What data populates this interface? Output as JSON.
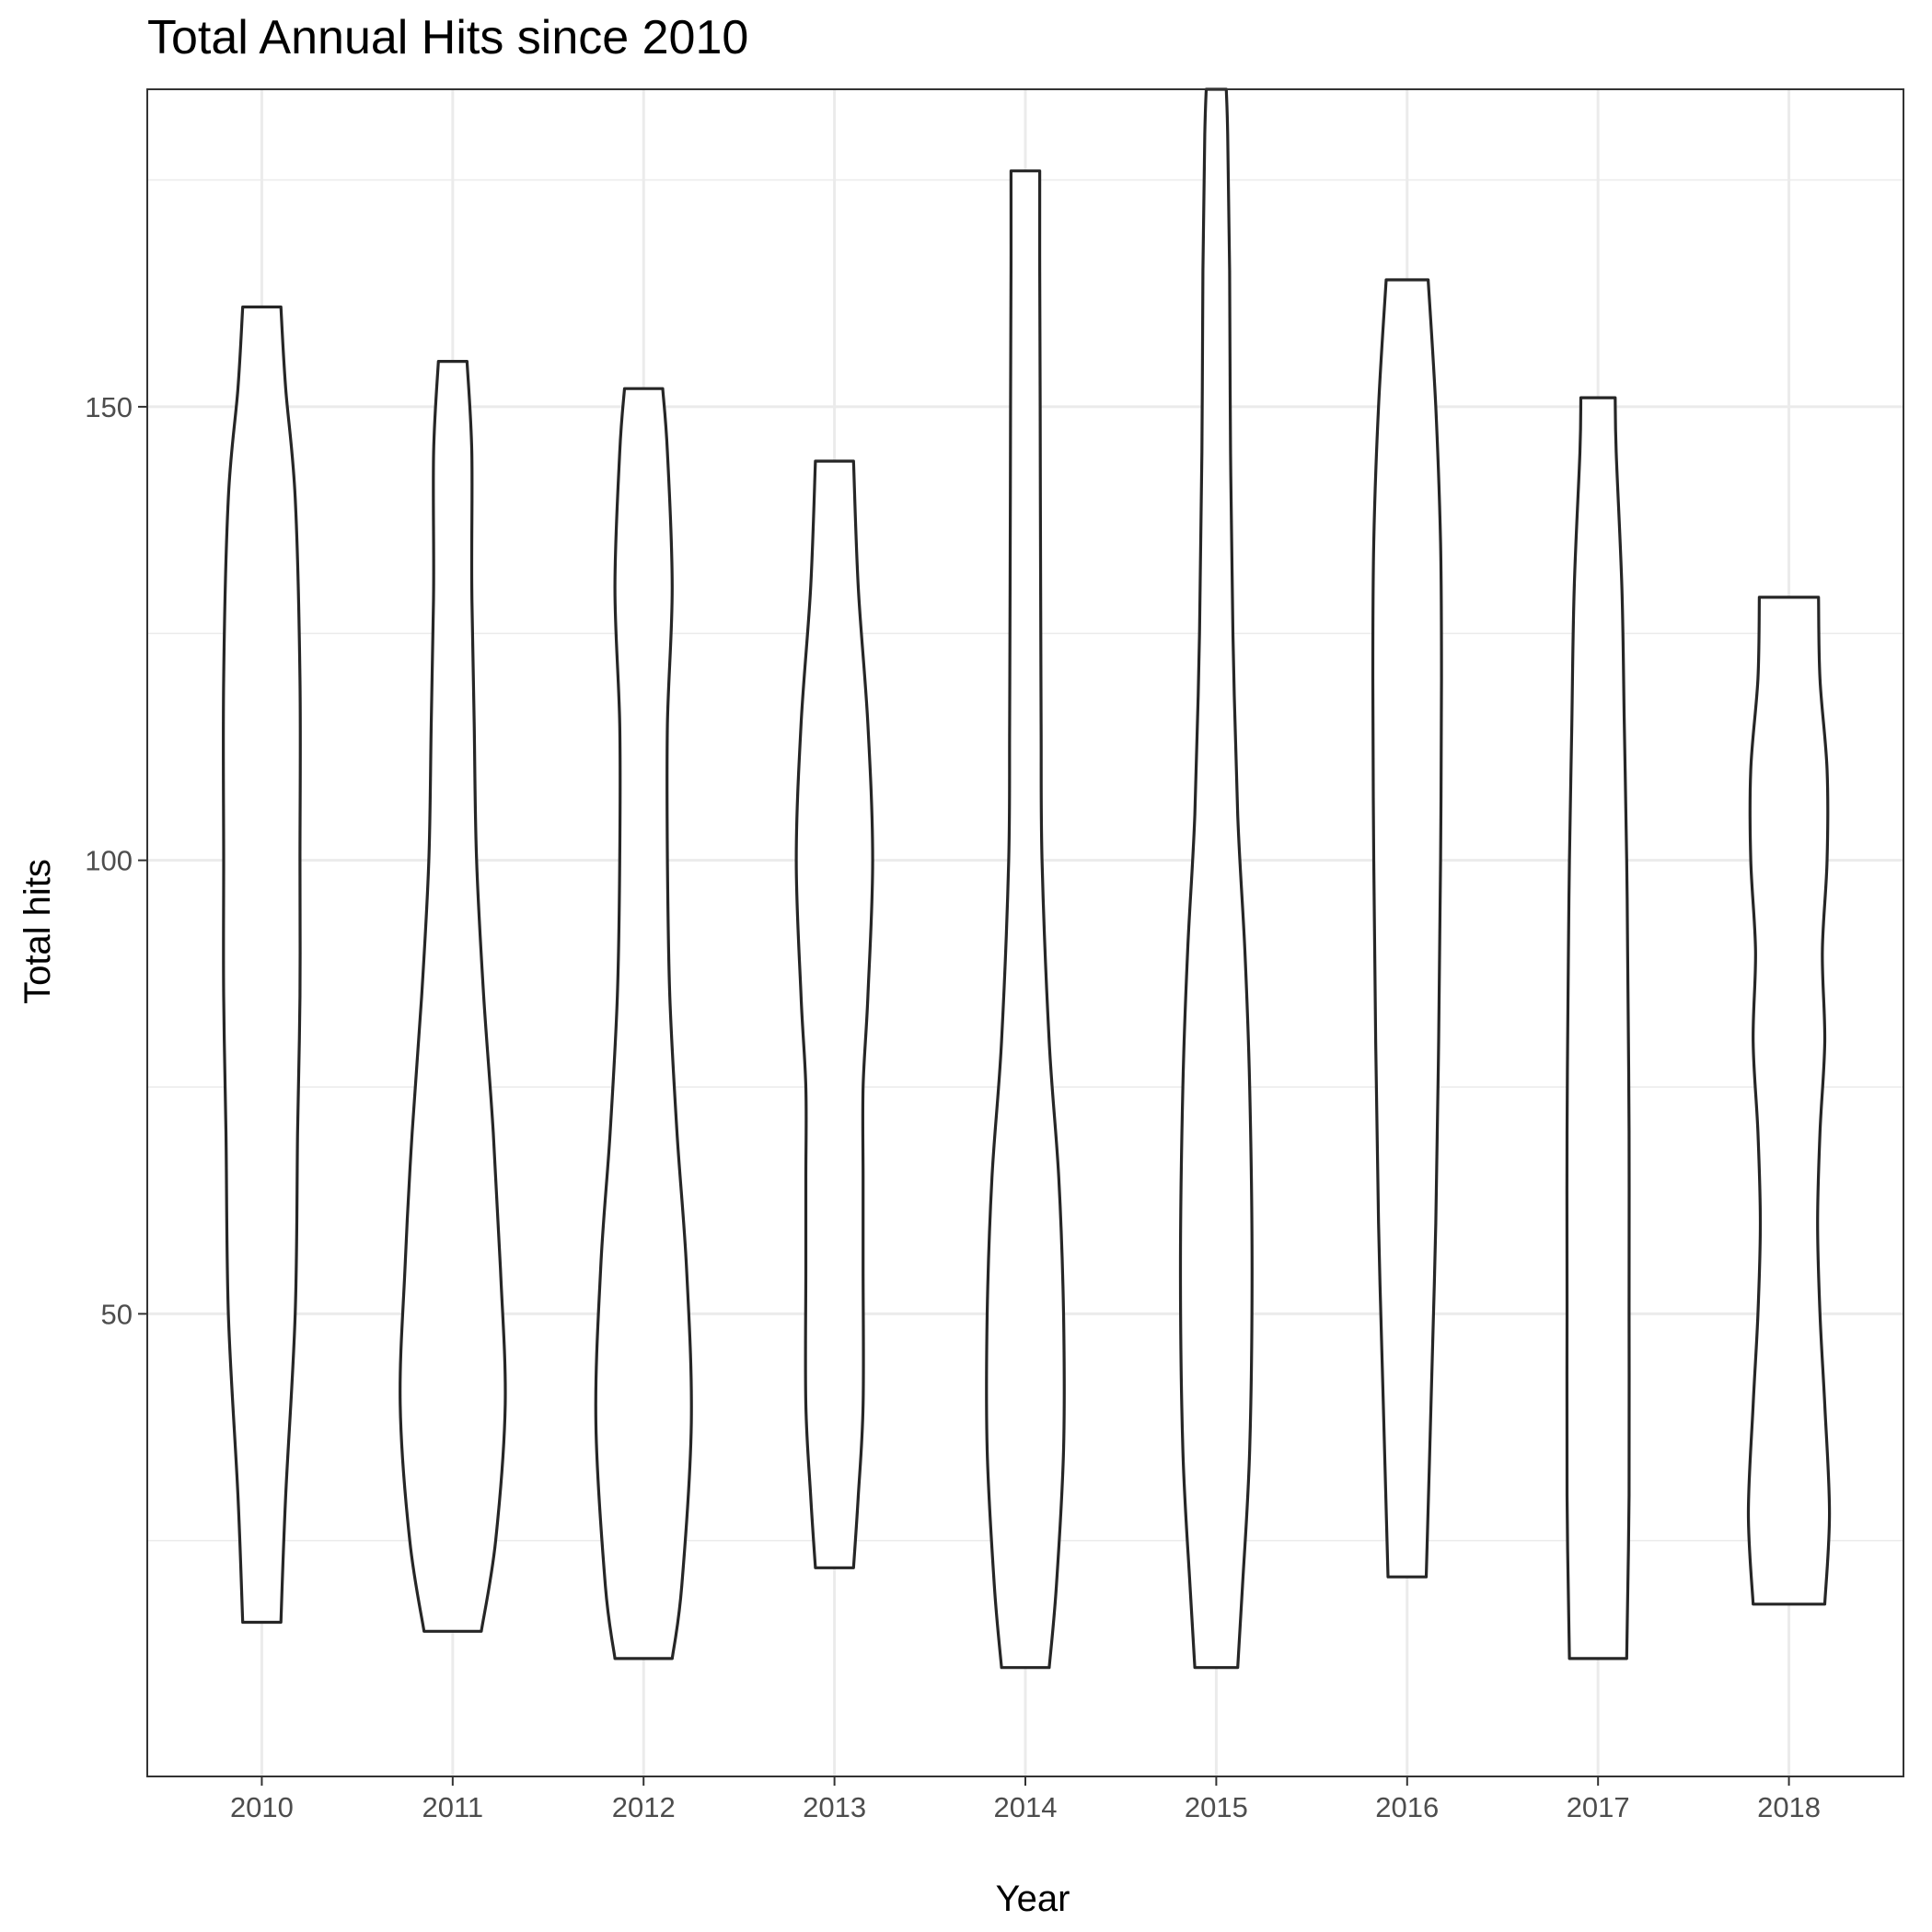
{
  "chart_data": {
    "type": "violin",
    "title": "Total Annual Hits since 2010",
    "xlabel": "Year",
    "ylabel": "Total hits",
    "ylim": [
      -1,
      185
    ],
    "yticks": [
      50,
      100,
      150
    ],
    "grid": true,
    "categories": [
      "2010",
      "2011",
      "2012",
      "2013",
      "2014",
      "2015",
      "2016",
      "2017",
      "2018"
    ],
    "violins": [
      {
        "year": "2010",
        "min": 16,
        "max": 161,
        "profile": [
          [
            16,
            0.04
          ],
          [
            30,
            0.05
          ],
          [
            50,
            0.07
          ],
          [
            70,
            0.075
          ],
          [
            85,
            0.08
          ],
          [
            100,
            0.08
          ],
          [
            120,
            0.08
          ],
          [
            140,
            0.07
          ],
          [
            152,
            0.05
          ],
          [
            161,
            0.04
          ]
        ]
      },
      {
        "year": "2011",
        "min": 15,
        "max": 155,
        "profile": [
          [
            15,
            0.06
          ],
          [
            25,
            0.09
          ],
          [
            40,
            0.11
          ],
          [
            55,
            0.1
          ],
          [
            70,
            0.085
          ],
          [
            85,
            0.065
          ],
          [
            100,
            0.05
          ],
          [
            115,
            0.045
          ],
          [
            130,
            0.04
          ],
          [
            145,
            0.04
          ],
          [
            155,
            0.03
          ]
        ]
      },
      {
        "year": "2012",
        "min": 12,
        "max": 152,
        "profile": [
          [
            12,
            0.06
          ],
          [
            20,
            0.08
          ],
          [
            38,
            0.1
          ],
          [
            55,
            0.09
          ],
          [
            70,
            0.07
          ],
          [
            85,
            0.055
          ],
          [
            100,
            0.05
          ],
          [
            115,
            0.05
          ],
          [
            130,
            0.06
          ],
          [
            145,
            0.05
          ],
          [
            152,
            0.04
          ]
        ]
      },
      {
        "year": "2013",
        "min": 22,
        "max": 144,
        "profile": [
          [
            22,
            0.04
          ],
          [
            30,
            0.05
          ],
          [
            40,
            0.06
          ],
          [
            55,
            0.06
          ],
          [
            65,
            0.06
          ],
          [
            75,
            0.06
          ],
          [
            85,
            0.07
          ],
          [
            100,
            0.08
          ],
          [
            115,
            0.07
          ],
          [
            130,
            0.05
          ],
          [
            144,
            0.04
          ]
        ]
      },
      {
        "year": "2014",
        "min": 11,
        "max": 176,
        "profile": [
          [
            11,
            0.05
          ],
          [
            20,
            0.065
          ],
          [
            35,
            0.08
          ],
          [
            50,
            0.08
          ],
          [
            65,
            0.07
          ],
          [
            80,
            0.05
          ],
          [
            100,
            0.035
          ],
          [
            115,
            0.033
          ],
          [
            130,
            0.032
          ],
          [
            150,
            0.031
          ],
          [
            165,
            0.03
          ],
          [
            176,
            0.03
          ]
        ]
      },
      {
        "year": "2015",
        "min": 11,
        "max": 185,
        "profile": [
          [
            11,
            0.045
          ],
          [
            20,
            0.055
          ],
          [
            35,
            0.07
          ],
          [
            55,
            0.075
          ],
          [
            75,
            0.07
          ],
          [
            90,
            0.06
          ],
          [
            105,
            0.045
          ],
          [
            125,
            0.035
          ],
          [
            145,
            0.03
          ],
          [
            165,
            0.028
          ],
          [
            180,
            0.024
          ],
          [
            185,
            0.021
          ]
        ]
      },
      {
        "year": "2016",
        "min": 21,
        "max": 164,
        "profile": [
          [
            21,
            0.04
          ],
          [
            40,
            0.05
          ],
          [
            60,
            0.06
          ],
          [
            80,
            0.066
          ],
          [
            100,
            0.07
          ],
          [
            120,
            0.072
          ],
          [
            135,
            0.07
          ],
          [
            150,
            0.06
          ],
          [
            164,
            0.044
          ]
        ]
      },
      {
        "year": "2017",
        "min": 12,
        "max": 151,
        "profile": [
          [
            12,
            0.06
          ],
          [
            30,
            0.065
          ],
          [
            50,
            0.065
          ],
          [
            70,
            0.065
          ],
          [
            90,
            0.062
          ],
          [
            100,
            0.06
          ],
          [
            115,
            0.055
          ],
          [
            130,
            0.05
          ],
          [
            145,
            0.038
          ],
          [
            151,
            0.036
          ]
        ]
      },
      {
        "year": "2018",
        "min": 18,
        "max": 129,
        "profile": [
          [
            18,
            0.075
          ],
          [
            28,
            0.085
          ],
          [
            40,
            0.075
          ],
          [
            50,
            0.065
          ],
          [
            60,
            0.06
          ],
          [
            70,
            0.065
          ],
          [
            80,
            0.075
          ],
          [
            90,
            0.07
          ],
          [
            100,
            0.08
          ],
          [
            110,
            0.08
          ],
          [
            120,
            0.065
          ],
          [
            129,
            0.062
          ]
        ]
      }
    ]
  }
}
